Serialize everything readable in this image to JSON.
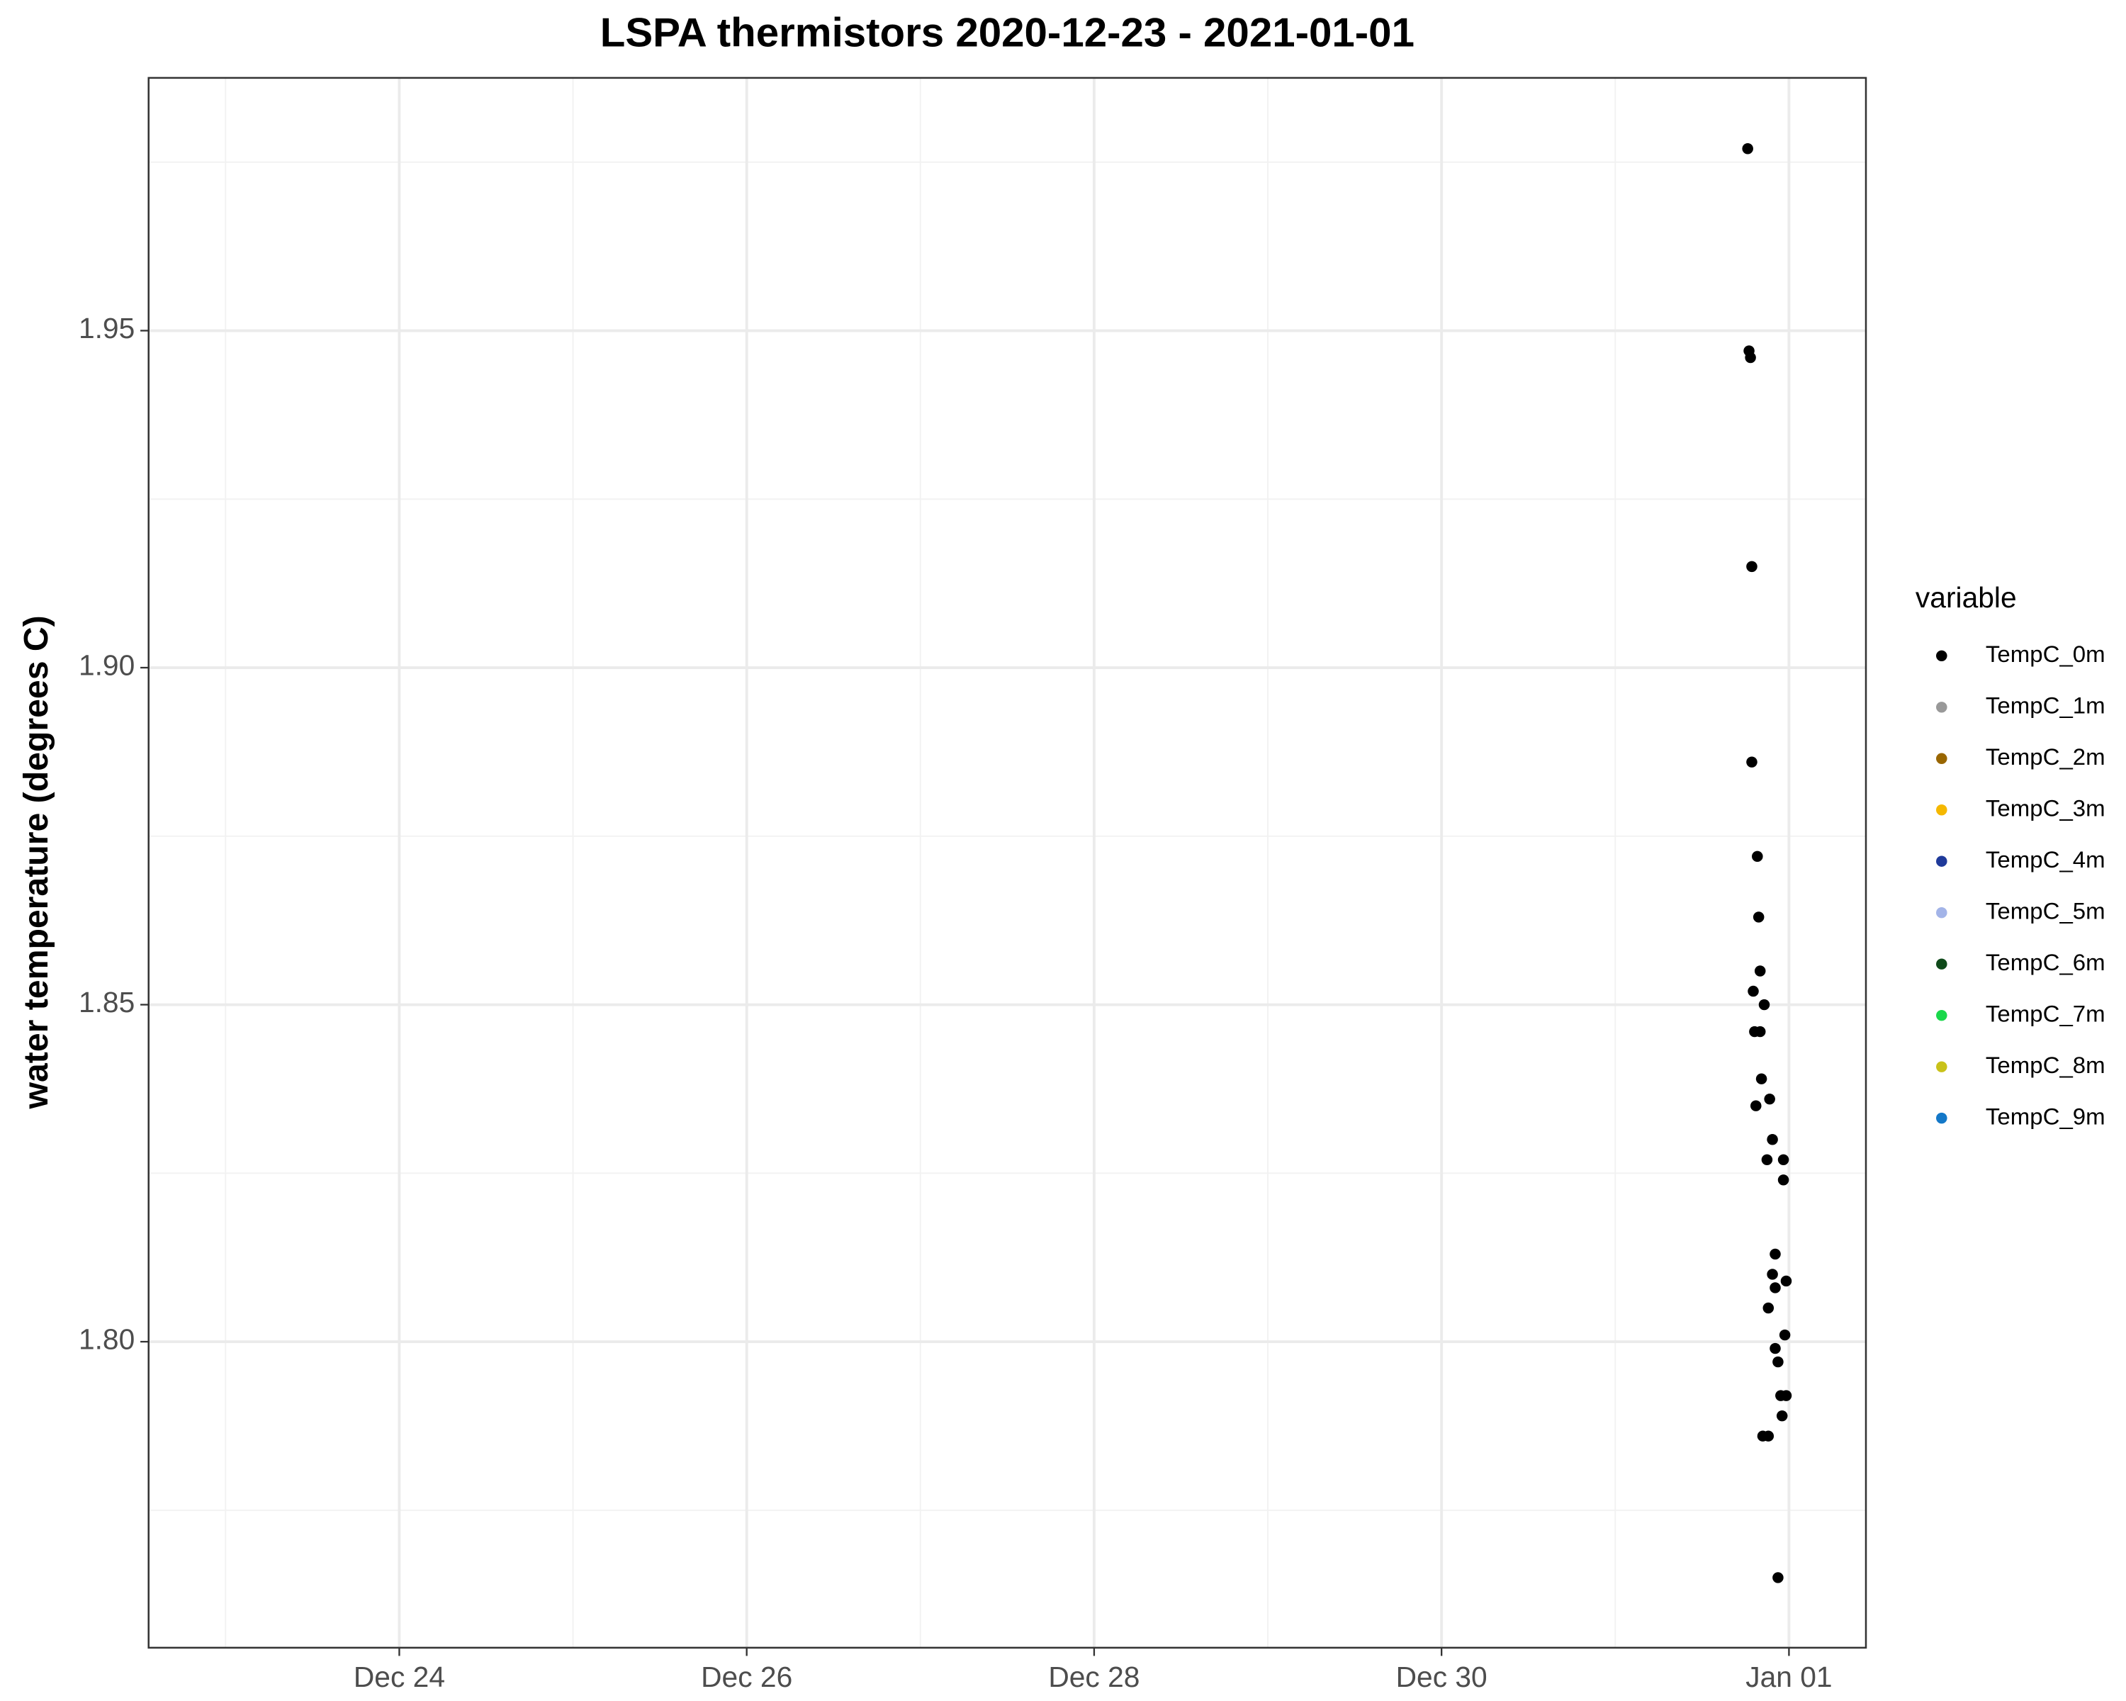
{
  "chart_data": {
    "type": "scatter",
    "title": "LSPA thermistors 2020-12-23 - 2021-01-01",
    "ylabel": "water temperature (degrees C)",
    "legend_title": "variable",
    "legend": "right",
    "grid": true,
    "xlim": [
      "2020-12-22T13:22",
      "2021-01-01T10:38"
    ],
    "xticks": [
      {
        "value": "2020-12-24T00:00",
        "label": "Dec 24"
      },
      {
        "value": "2020-12-26T00:00",
        "label": "Dec 26"
      },
      {
        "value": "2020-12-28T00:00",
        "label": "Dec 28"
      },
      {
        "value": "2020-12-30T00:00",
        "label": "Dec 30"
      },
      {
        "value": "2021-01-01T00:00",
        "label": "Jan 01"
      }
    ],
    "xminor": [
      "2020-12-23T00:00",
      "2020-12-25T00:00",
      "2020-12-27T00:00",
      "2020-12-29T00:00",
      "2020-12-31T00:00"
    ],
    "ylim": [
      1.7546,
      1.9875
    ],
    "yticks": [
      {
        "value": 1.8,
        "label": "1.80"
      },
      {
        "value": 1.85,
        "label": "1.85"
      },
      {
        "value": 1.9,
        "label": "1.90"
      },
      {
        "value": 1.95,
        "label": "1.95"
      }
    ],
    "yminor": [
      1.775,
      1.825,
      1.875,
      1.925,
      1.975
    ],
    "series": [
      {
        "name": "TempC_0m",
        "color": "#000000",
        "x": [
          "2020-12-31T18:18",
          "2020-12-31T18:29",
          "2020-12-31T18:41",
          "2020-12-31T18:52",
          "2020-12-31T18:52",
          "2020-12-31T19:38",
          "2020-12-31T19:49",
          "2020-12-31T20:01",
          "2020-12-31T19:04",
          "2020-12-31T20:35",
          "2020-12-31T19:15",
          "2020-12-31T20:01",
          "2020-12-31T20:12",
          "2020-12-31T19:26",
          "2020-12-31T21:20",
          "2020-12-31T21:43",
          "2020-12-31T20:58",
          "2020-12-31T23:14",
          "2020-12-31T23:14",
          "2020-12-31T22:06",
          "2020-12-31T21:43",
          "2020-12-31T23:37",
          "2020-12-31T22:06",
          "2020-12-31T21:09",
          "2020-12-31T23:26",
          "2020-12-31T22:06",
          "2020-12-31T22:29",
          "2020-12-31T22:52",
          "2020-12-31T23:37",
          "2020-12-31T23:03",
          "2020-12-31T20:23",
          "2020-12-31T21:09",
          "2020-12-31T22:29"
        ],
        "values": [
          1.977,
          1.947,
          1.946,
          1.915,
          1.886,
          1.872,
          1.863,
          1.855,
          1.852,
          1.85,
          1.846,
          1.846,
          1.839,
          1.835,
          1.836,
          1.83,
          1.827,
          1.827,
          1.824,
          1.813,
          1.81,
          1.809,
          1.808,
          1.805,
          1.801,
          1.799,
          1.797,
          1.792,
          1.792,
          1.789,
          1.786,
          1.786,
          1.765
        ]
      },
      {
        "name": "TempC_1m",
        "color": "#999999",
        "x": [],
        "values": []
      },
      {
        "name": "TempC_2m",
        "color": "#996600",
        "x": [],
        "values": []
      },
      {
        "name": "TempC_3m",
        "color": "#f5b800",
        "x": [],
        "values": []
      },
      {
        "name": "TempC_4m",
        "color": "#1f3a9a",
        "x": [],
        "values": []
      },
      {
        "name": "TempC_5m",
        "color": "#a3b4e8",
        "x": [],
        "values": []
      },
      {
        "name": "TempC_6m",
        "color": "#0f4a1a",
        "x": [],
        "values": []
      },
      {
        "name": "TempC_7m",
        "color": "#1ad84b",
        "x": [],
        "values": []
      },
      {
        "name": "TempC_8m",
        "color": "#c9c21a",
        "x": [],
        "values": []
      },
      {
        "name": "TempC_9m",
        "color": "#1478c8",
        "x": [],
        "values": []
      }
    ]
  }
}
